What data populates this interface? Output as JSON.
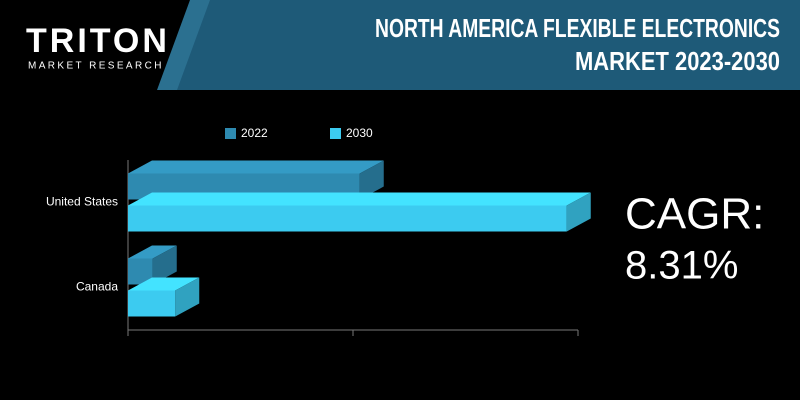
{
  "logo": {
    "name": "TRITON",
    "tagline": "MARKET RESEARCH"
  },
  "chart_data": {
    "type": "bar3d",
    "title_lines": [
      "NORTH AMERICA FLEXIBLE ELECTRONICS",
      "MARKET 2023-2030"
    ],
    "categories": [
      "United States",
      "Canada"
    ],
    "series": [
      {
        "name": "2022",
        "color": "#2e8ab0",
        "values": [
          1.03,
          0.11
        ]
      },
      {
        "name": "2030",
        "color": "#3ccbf0",
        "values": [
          1.95,
          0.21
        ]
      }
    ],
    "xlim": [
      0,
      2
    ],
    "xticks": [
      0,
      1,
      2
    ],
    "annotation": {
      "label": "CAGR:",
      "value": "8.31%"
    }
  }
}
